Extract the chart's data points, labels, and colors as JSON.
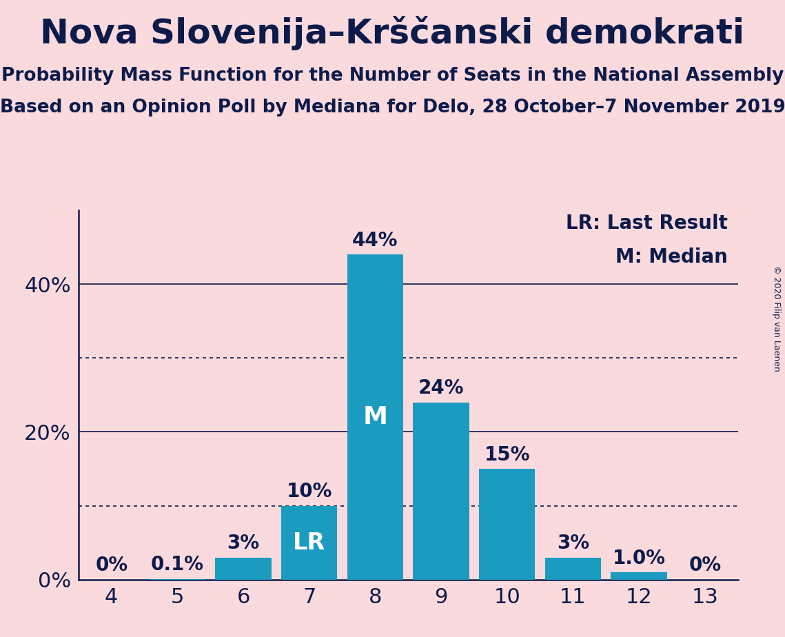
{
  "title": "Nova Slovenija–Krščanski demokrati",
  "subtitle1": "Probability Mass Function for the Number of Seats in the National Assembly",
  "subtitle2": "Based on an Opinion Poll by Mediana for Delo, 28 October–7 November 2019",
  "copyright": "© 2020 Filip van Laenen",
  "categories": [
    4,
    5,
    6,
    7,
    8,
    9,
    10,
    11,
    12,
    13
  ],
  "values": [
    0.0,
    0.1,
    3.0,
    10.0,
    44.0,
    24.0,
    15.0,
    3.0,
    1.0,
    0.0
  ],
  "bar_labels": [
    "0%",
    "0.1%",
    "3%",
    "10%",
    "44%",
    "24%",
    "15%",
    "3%",
    "1.0%",
    "0%"
  ],
  "bar_color": "#1a9bbf",
  "background_color": "#fadadd",
  "text_color": "#0d1b4b",
  "lr_index": 3,
  "median_index": 4,
  "lr_label": "LR",
  "median_label": "M",
  "legend_lr": "LR: Last Result",
  "legend_m": "M: Median",
  "yticks": [
    0,
    20,
    40
  ],
  "dotted_lines": [
    10,
    30
  ],
  "ylim": [
    0,
    50
  ],
  "title_fontsize": 36,
  "subtitle_fontsize": 19,
  "tick_fontsize": 22,
  "bar_label_fontsize": 20,
  "legend_fontsize": 20,
  "inside_label_fontsize": 24,
  "copyright_fontsize": 9
}
